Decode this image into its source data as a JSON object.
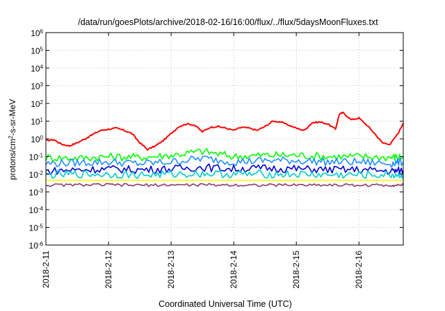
{
  "chart_data": {
    "type": "line",
    "title": "/data/run/goesPlots/archive/2018-02-16/16:00/flux/../flux/5daysMoonFluxes.txt",
    "xlabel": "Coordinated Universal Time (UTC)",
    "ylabel": {
      "prefix": "protons/cm",
      "sup": "2",
      "suffix": "-s-sr-MeV"
    },
    "y_scale": "log",
    "ylim": [
      1e-06,
      1000000.0
    ],
    "y_ticks": [
      {
        "value": 1e-06,
        "base": "10",
        "exp": "-6"
      },
      {
        "value": 1e-05,
        "base": "10",
        "exp": "-5"
      },
      {
        "value": 0.0001,
        "base": "10",
        "exp": "-4"
      },
      {
        "value": 0.001,
        "base": "10",
        "exp": "-3"
      },
      {
        "value": 0.01,
        "base": "10",
        "exp": "-2"
      },
      {
        "value": 0.1,
        "base": "10",
        "exp": "-1"
      },
      {
        "value": 1,
        "base": "10",
        "exp": "0"
      },
      {
        "value": 10.0,
        "base": "10",
        "exp": "1"
      },
      {
        "value": 100.0,
        "base": "10",
        "exp": "2"
      },
      {
        "value": 1000.0,
        "base": "10",
        "exp": "3"
      },
      {
        "value": 10000.0,
        "base": "10",
        "exp": "4"
      },
      {
        "value": 100000.0,
        "base": "10",
        "exp": "5"
      },
      {
        "value": 1000000.0,
        "base": "10",
        "exp": "6"
      }
    ],
    "xlim": [
      "2018-02-11",
      "2018-02-16T17:00"
    ],
    "x_ticks": [
      "2018-2-11",
      "2018-2-12",
      "2018-2-13",
      "2018-2-14",
      "2018-2-15",
      "2018-2-16"
    ],
    "grid": true,
    "legend": "none",
    "series": [
      {
        "color": "#ff0000",
        "x": [
          "2018-02-11T00:00",
          "2018-02-11T03:00",
          "2018-02-11T06:00",
          "2018-02-11T09:00",
          "2018-02-11T12:00",
          "2018-02-11T15:00",
          "2018-02-11T18:00",
          "2018-02-11T21:00",
          "2018-02-12T00:00",
          "2018-02-12T03:00",
          "2018-02-12T06:00",
          "2018-02-12T09:00",
          "2018-02-12T12:00",
          "2018-02-12T15:00",
          "2018-02-12T18:00",
          "2018-02-12T21:00",
          "2018-02-13T00:00",
          "2018-02-13T03:00",
          "2018-02-13T06:00",
          "2018-02-13T09:00",
          "2018-02-13T12:00",
          "2018-02-13T15:00",
          "2018-02-13T18:00",
          "2018-02-13T21:00",
          "2018-02-14T00:00",
          "2018-02-14T03:00",
          "2018-02-14T06:00",
          "2018-02-14T09:00",
          "2018-02-14T12:00",
          "2018-02-14T15:00",
          "2018-02-14T18:00",
          "2018-02-14T21:00",
          "2018-02-15T00:00",
          "2018-02-15T03:00",
          "2018-02-15T06:00",
          "2018-02-15T09:00",
          "2018-02-15T12:00",
          "2018-02-15T15:00",
          "2018-02-15T16:30",
          "2018-02-15T18:00",
          "2018-02-15T21:00",
          "2018-02-16T00:00",
          "2018-02-16T03:00",
          "2018-02-16T06:00",
          "2018-02-16T09:00",
          "2018-02-16T12:00",
          "2018-02-16T15:00",
          "2018-02-16T17:00"
        ],
        "y": [
          0.8,
          0.9,
          0.5,
          0.4,
          0.6,
          1.0,
          1.8,
          3.0,
          3.5,
          4.0,
          3.0,
          2.0,
          0.6,
          0.25,
          0.4,
          0.8,
          2.0,
          5.0,
          7.0,
          6.0,
          2.5,
          4.5,
          5.0,
          4.0,
          3.0,
          4.5,
          4.0,
          3.0,
          5.0,
          10.0,
          9.0,
          6.0,
          4.0,
          3.0,
          8.0,
          9.0,
          7.0,
          3.5,
          25.0,
          30.0,
          12.0,
          15.0,
          6.0,
          2.0,
          0.6,
          0.5,
          2.0,
          8.0
        ]
      },
      {
        "color": "#00ff00",
        "x": [
          "2018-02-11T00:00",
          "2018-02-11T12:00",
          "2018-02-12T00:00",
          "2018-02-12T12:00",
          "2018-02-13T00:00",
          "2018-02-13T12:00",
          "2018-02-14T00:00",
          "2018-02-14T12:00",
          "2018-02-15T00:00",
          "2018-02-15T12:00",
          "2018-02-16T00:00",
          "2018-02-16T12:00",
          "2018-02-16T17:00"
        ],
        "y": [
          0.09,
          0.08,
          0.1,
          0.09,
          0.12,
          0.2,
          0.1,
          0.12,
          0.12,
          0.1,
          0.1,
          0.09,
          0.1
        ]
      },
      {
        "color": "#1e90ff",
        "x": [
          "2018-02-11T00:00",
          "2018-02-11T12:00",
          "2018-02-12T00:00",
          "2018-02-12T12:00",
          "2018-02-13T00:00",
          "2018-02-13T12:00",
          "2018-02-14T00:00",
          "2018-02-14T12:00",
          "2018-02-15T00:00",
          "2018-02-15T12:00",
          "2018-02-16T00:00",
          "2018-02-16T12:00",
          "2018-02-16T17:00"
        ],
        "y": [
          0.04,
          0.045,
          0.05,
          0.04,
          0.05,
          0.08,
          0.05,
          0.06,
          0.06,
          0.05,
          0.05,
          0.04,
          0.05
        ]
      },
      {
        "color": "#0000cc",
        "x": [
          "2018-02-11T00:00",
          "2018-02-11T12:00",
          "2018-02-12T00:00",
          "2018-02-12T12:00",
          "2018-02-13T00:00",
          "2018-02-13T12:00",
          "2018-02-14T00:00",
          "2018-02-14T12:00",
          "2018-02-15T00:00",
          "2018-02-15T12:00",
          "2018-02-16T00:00",
          "2018-02-16T12:00",
          "2018-02-16T17:00"
        ],
        "y": [
          0.015,
          0.018,
          0.02,
          0.018,
          0.02,
          0.025,
          0.02,
          0.022,
          0.02,
          0.018,
          0.018,
          0.015,
          0.016
        ]
      },
      {
        "color": "#00ced1",
        "x": [
          "2018-02-11T00:00",
          "2018-02-11T12:00",
          "2018-02-12T00:00",
          "2018-02-12T12:00",
          "2018-02-13T00:00",
          "2018-02-13T12:00",
          "2018-02-14T00:00",
          "2018-02-14T12:00",
          "2018-02-15T00:00",
          "2018-02-15T12:00",
          "2018-02-16T00:00",
          "2018-02-16T12:00",
          "2018-02-16T17:00"
        ],
        "y": [
          0.009,
          0.01,
          0.01,
          0.009,
          0.01,
          0.011,
          0.01,
          0.01,
          0.01,
          0.009,
          0.009,
          0.009,
          0.009
        ]
      },
      {
        "color": "#ffff00",
        "x": [
          "2018-02-11T00:00",
          "2018-02-11T12:00",
          "2018-02-12T00:00",
          "2018-02-12T12:00",
          "2018-02-13T00:00",
          "2018-02-13T12:00",
          "2018-02-14T00:00",
          "2018-02-14T12:00",
          "2018-02-15T00:00",
          "2018-02-15T12:00",
          "2018-02-16T00:00",
          "2018-02-16T12:00",
          "2018-02-16T17:00"
        ],
        "y": [
          0.0045,
          0.0045,
          0.0045,
          0.0045,
          0.0045,
          0.0045,
          0.0045,
          0.0045,
          0.0045,
          0.0045,
          0.0045,
          0.0045,
          0.0045
        ]
      },
      {
        "color": "#8b3a62",
        "x": [
          "2018-02-11T00:00",
          "2018-02-11T12:00",
          "2018-02-12T00:00",
          "2018-02-12T12:00",
          "2018-02-13T00:00",
          "2018-02-13T12:00",
          "2018-02-14T00:00",
          "2018-02-14T12:00",
          "2018-02-15T00:00",
          "2018-02-15T12:00",
          "2018-02-16T00:00",
          "2018-02-16T12:00",
          "2018-02-16T17:00"
        ],
        "y": [
          0.0024,
          0.0025,
          0.0025,
          0.0024,
          0.0025,
          0.0025,
          0.0025,
          0.0024,
          0.0025,
          0.0025,
          0.0024,
          0.0024,
          0.0025
        ]
      }
    ]
  }
}
